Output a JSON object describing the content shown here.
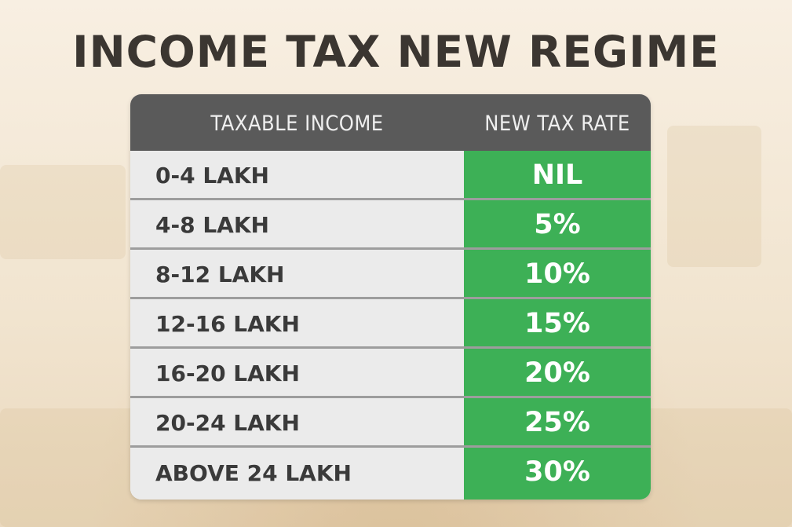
{
  "title": "INCOME TAX NEW REGIME",
  "table": {
    "headers": {
      "income": "TAXABLE INCOME",
      "rate": "NEW TAX RATE"
    },
    "rows": [
      {
        "income": "0-4 LAKH",
        "rate": "NIL"
      },
      {
        "income": "4-8 LAKH",
        "rate": "5%"
      },
      {
        "income": "8-12 LAKH",
        "rate": "10%"
      },
      {
        "income": "12-16 LAKH",
        "rate": "15%"
      },
      {
        "income": "16-20 LAKH",
        "rate": "20%"
      },
      {
        "income": "20-24 LAKH",
        "rate": "25%"
      },
      {
        "income": "ABOVE 24 LAKH",
        "rate": "30%"
      }
    ]
  },
  "colors": {
    "header_bg": "#5a5a5a",
    "rate_bg": "#3db056",
    "income_bg": "#ebebeb",
    "title_text": "#3b3631"
  }
}
